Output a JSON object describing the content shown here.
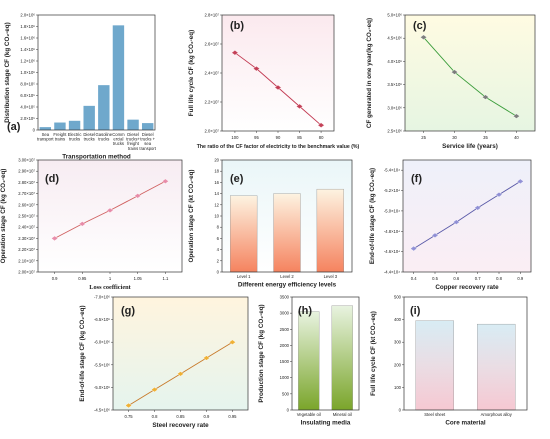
{
  "chart_data": [
    {
      "letter": "(a)",
      "type": "bar",
      "categories": [
        "Sea transport",
        "Freight trains",
        "Electric trucks",
        "Diesel trucks",
        "Gasoline trucks",
        "Commercial trucks",
        "Diesel trucks + freight trains",
        "Diesel trucks + sea transport"
      ],
      "category_lines": [
        [
          "Sea",
          "transport"
        ],
        [
          "Freight",
          "trains"
        ],
        [
          "Electric",
          "trucks"
        ],
        [
          "Diesel",
          "trucks"
        ],
        [
          "Gasoline",
          "trucks"
        ],
        [
          "Comm",
          "ercial",
          "trucks"
        ],
        [
          "Diesel",
          "trucks+",
          "freight",
          "trains"
        ],
        [
          "Diesel",
          "trucks +",
          "sea",
          "transport"
        ]
      ],
      "values": [
        50000,
        130000,
        160000,
        420000,
        780000,
        1820000,
        180000,
        120000
      ],
      "ylim": [
        0,
        2000000
      ],
      "yticks": [
        0,
        200000,
        400000,
        600000,
        800000,
        1000000,
        1200000,
        1400000,
        1600000,
        1800000,
        2000000
      ],
      "yticklabels": [
        "0",
        "2.0×10⁵",
        "4.0×10⁵",
        "6.0×10⁵",
        "8.0×10⁵",
        "1.0×10⁶",
        "1.2×10⁶",
        "1.4×10⁶",
        "1.6×10⁶",
        "1.8×10⁶",
        "2.0×10⁶"
      ],
      "xlabel": "Transportation method",
      "ylabel": "Distribution stage CF (kg CO₂-eq)",
      "colors": {
        "bar": "#6fa8cc"
      }
    },
    {
      "letter": "(b)",
      "type": "line",
      "x": [
        100,
        95,
        90,
        85,
        80
      ],
      "values": [
        25400000,
        24300000,
        23000000,
        21700000,
        20400000
      ],
      "xticks": [
        100,
        95,
        90,
        85,
        80
      ],
      "xticklabels": [
        "100",
        "95",
        "90",
        "85",
        "80"
      ],
      "xlim": [
        103,
        77
      ],
      "ylim": [
        20000000,
        28000000
      ],
      "yticks": [
        20000000,
        22000000,
        24000000,
        26000000,
        28000000
      ],
      "yticklabels": [
        "2.0×10⁷",
        "2.2×10⁷",
        "2.4×10⁷",
        "2.6×10⁷",
        "2.8×10⁷"
      ],
      "xlabel": "The ratio of the CF factor of electricity to the benchmark value (%)",
      "ylabel": "Full life cycle CF (kg CO₂-eq)",
      "colors": {
        "line": "#c23a52",
        "marker": "#c23a52"
      }
    },
    {
      "letter": "(c)",
      "type": "line",
      "x": [
        25,
        30,
        35,
        40
      ],
      "values": [
        4520000,
        3770000,
        3230000,
        2820000
      ],
      "xticks": [
        25,
        30,
        35,
        40
      ],
      "xticklabels": [
        "25",
        "30",
        "35",
        "40"
      ],
      "xlim": [
        22,
        43
      ],
      "ylim": [
        2500000,
        5000000
      ],
      "yticks": [
        2500000,
        3000000,
        3500000,
        4000000,
        4500000,
        5000000
      ],
      "yticklabels": [
        "2.5×10⁶",
        "3.0×10⁶",
        "3.5×10⁶",
        "4.0×10⁶",
        "4.5×10⁶",
        "5.0×10⁶"
      ],
      "xlabel": "Service life (years)",
      "ylabel": "CF generated in one year(kg CO₂-eq)",
      "colors": {
        "line": "#3b9d3b",
        "marker": "#7a7a7a"
      }
    },
    {
      "letter": "(d)",
      "type": "line",
      "x": [
        0.9,
        0.95,
        1.0,
        1.05,
        1.1
      ],
      "values": [
        23000000,
        24300000,
        25500000,
        26800000,
        28100000
      ],
      "xticks": [
        0.9,
        0.95,
        1.0,
        1.05,
        1.1
      ],
      "xticklabels": [
        "0.9",
        "0.95",
        "1",
        "1.05",
        "1.1"
      ],
      "xlim": [
        0.87,
        1.13
      ],
      "ylim": [
        20000000,
        30000000
      ],
      "yticks": [
        20000000,
        21000000,
        22000000,
        23000000,
        24000000,
        25000000,
        26000000,
        27000000,
        28000000,
        29000000,
        30000000
      ],
      "yticklabels": [
        "2.00×10⁷",
        "2.10×10⁷",
        "2.20×10⁷",
        "2.30×10⁷",
        "2.40×10⁷",
        "2.50×10⁷",
        "2.60×10⁷",
        "2.70×10⁷",
        "2.80×10⁷",
        "2.90×10⁷",
        "3.00×10⁷"
      ],
      "xlabel": "Loss coefficient",
      "ylabel": "Operation stage CF (kg CO₂-eq)",
      "colors": {
        "line": "#d06060",
        "marker": "#e88aa8"
      }
    },
    {
      "letter": "(e)",
      "type": "bar",
      "categories": [
        "Level 1",
        "Level 2",
        "Level 3"
      ],
      "category_lines": [
        [
          "Level 1"
        ],
        [
          "Level 2"
        ],
        [
          "Level 3"
        ]
      ],
      "values": [
        13.6,
        14.0,
        14.8
      ],
      "ylim": [
        0,
        20
      ],
      "yticks": [
        0,
        2,
        4,
        6,
        8,
        10,
        12,
        14,
        16,
        18,
        20
      ],
      "yticklabels": [
        "0",
        "2",
        "4",
        "6",
        "8",
        "10",
        "12",
        "14",
        "16",
        "18",
        "20"
      ],
      "xlabel": "Different energy efficiency levels",
      "ylabel": "Operation stage CF (kt CO₂-eq)",
      "colors": {
        "bar_top": "#fdf3e1",
        "bar_bottom": "#f5835f"
      }
    },
    {
      "letter": "(f)",
      "type": "line",
      "x": [
        0.4,
        0.5,
        0.6,
        0.7,
        0.8,
        0.9
      ],
      "values": [
        -46300,
        -47600,
        -48900,
        -50300,
        -51600,
        -52900
      ],
      "xticks": [
        0.4,
        0.5,
        0.6,
        0.7,
        0.8,
        0.9
      ],
      "xticklabels": [
        "0.4",
        "0.5",
        "0.6",
        "0.7",
        "0.8",
        "0.9"
      ],
      "xlim": [
        0.35,
        0.95
      ],
      "ylim": [
        -44000,
        -55000
      ],
      "yticks": [
        -44000,
        -46000,
        -48000,
        -50000,
        -52000,
        -54000
      ],
      "yticklabels": [
        "-4.4×10⁴",
        "-4.6×10⁴",
        "-4.8×10⁴",
        "-5.0×10⁴",
        "-5.2×10⁴",
        "-5.4×10⁴"
      ],
      "xlabel": "Copper recovery rate",
      "ylabel": "End-of-life stage CF (kg CO₂-eq)",
      "colors": {
        "line": "#5a5aa8",
        "marker": "#8f8fd6"
      }
    },
    {
      "letter": "(g)",
      "type": "line",
      "x": [
        0.75,
        0.8,
        0.85,
        0.9,
        0.95
      ],
      "values": [
        -4600000,
        -4950000,
        -5300000,
        -5650000,
        -6000000
      ],
      "xticks": [
        0.75,
        0.8,
        0.85,
        0.9,
        0.95
      ],
      "xticklabels": [
        "0.75",
        "0.8",
        "0.85",
        "0.9",
        "0.95"
      ],
      "xlim": [
        0.72,
        0.98
      ],
      "ylim": [
        -4500000,
        -7000000
      ],
      "yticks": [
        -4500000,
        -5000000,
        -5500000,
        -6000000,
        -6500000,
        -7000000
      ],
      "yticklabels": [
        "-4.5×10⁶",
        "-5.0×10⁶",
        "-5.5×10⁶",
        "-6.0×10⁶",
        "-6.5×10⁶",
        "-7.0×10⁶"
      ],
      "xlabel": "Steel recovery rate",
      "ylabel": "End-of-life stage CF (kg CO₂-eq)",
      "colors": {
        "line": "#c87a2a",
        "marker": "#f0b030"
      }
    },
    {
      "letter": "(h)",
      "type": "bar",
      "categories": [
        "Vegetable oil",
        "Mineral oil"
      ],
      "category_lines": [
        [
          "Vegetable oil"
        ],
        [
          "Mineral oil"
        ]
      ],
      "values": [
        3050,
        3230
      ],
      "ylim": [
        0,
        3500
      ],
      "yticks": [
        0,
        500,
        1000,
        1500,
        2000,
        2500,
        3000,
        3500
      ],
      "yticklabels": [
        "0",
        "500",
        "1000",
        "1500",
        "2000",
        "2500",
        "3000",
        "3500"
      ],
      "xlabel": "Insulating media",
      "ylabel": "Production stage CF (kg CO₂-eq)",
      "colors": {
        "bar_top": "#e8f3e0",
        "bar_bottom": "#7aa52a"
      }
    },
    {
      "letter": "(i)",
      "type": "bar",
      "categories": [
        "Steel sheet",
        "Amorphous alloy"
      ],
      "category_lines": [
        [
          "Steel sheet"
        ],
        [
          "Amorphous alloy"
        ]
      ],
      "values": [
        395,
        380
      ],
      "ylim": [
        0,
        500
      ],
      "yticks": [
        0,
        100,
        200,
        300,
        400,
        500
      ],
      "yticklabels": [
        "0",
        "100",
        "200",
        "300",
        "400",
        "500"
      ],
      "xlabel": "Core material",
      "ylabel": "Full life cycle CF (kt CO₂-eq)",
      "colors": {
        "bar_top": "#d8ecf4",
        "bar_bottom": "#f6c8d2"
      }
    }
  ]
}
